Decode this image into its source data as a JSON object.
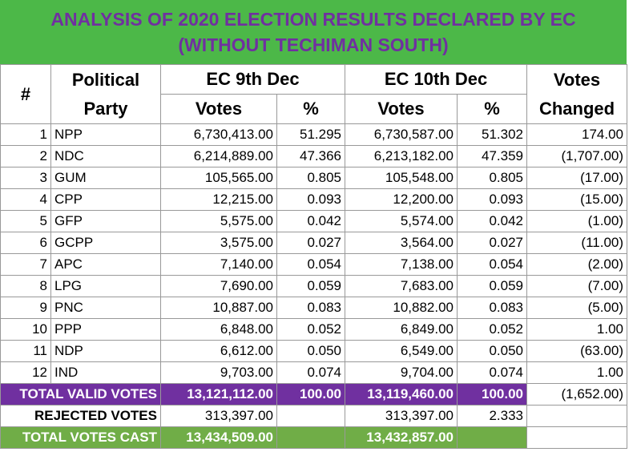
{
  "title": [
    "ANALYSIS OF 2020 ELECTION RESULTS DECLARED BY EC",
    "(WITHOUT TECHIMAN SOUTH)"
  ],
  "header": {
    "number": "#",
    "party": "Political Party",
    "ec_9": "EC 9th Dec",
    "ec_10": "EC 10th Dec",
    "changed": "Votes Changed",
    "sub": [
      "Votes",
      "%",
      "Votes",
      "%"
    ]
  },
  "rows": [
    [
      "1",
      "NPP",
      "6,730,413.00",
      "51.295",
      "6,730,587.00",
      "51.302",
      "174.00"
    ],
    [
      "2",
      "NDC",
      "6,214,889.00",
      "47.366",
      "6,213,182.00",
      "47.359",
      "(1,707.00)"
    ],
    [
      "3",
      "GUM",
      "105,565.00",
      "0.805",
      "105,548.00",
      "0.805",
      "(17.00)"
    ],
    [
      "4",
      "CPP",
      "12,215.00",
      "0.093",
      "12,200.00",
      "0.093",
      "(15.00)"
    ],
    [
      "5",
      "GFP",
      "5,575.00",
      "0.042",
      "5,574.00",
      "0.042",
      "(1.00)"
    ],
    [
      "6",
      "GCPP",
      "3,575.00",
      "0.027",
      "3,564.00",
      "0.027",
      "(11.00)"
    ],
    [
      "7",
      "APC",
      "7,140.00",
      "0.054",
      "7,138.00",
      "0.054",
      "(2.00)"
    ],
    [
      "8",
      "LPG",
      "7,690.00",
      "0.059",
      "7,683.00",
      "0.059",
      "(7.00)"
    ],
    [
      "9",
      "PNC",
      "10,887.00",
      "0.083",
      "10,882.00",
      "0.083",
      "(5.00)"
    ],
    [
      "10",
      "PPP",
      "6,848.00",
      "0.052",
      "6,849.00",
      "0.052",
      "1.00"
    ],
    [
      "11",
      "NDP",
      "6,612.00",
      "0.050",
      "6,549.00",
      "0.050",
      "(63.00)"
    ],
    [
      "12",
      "IND",
      "9,703.00",
      "0.074",
      "9,704.00",
      "0.074",
      "1.00"
    ]
  ],
  "totals": {
    "total_valid": {
      "label": "TOTAL VALID VOTES",
      "votes_9": "13,121,112.00",
      "pct_9": "100.00",
      "votes_10": "13,119,460.00",
      "pct_10": "100.00",
      "changed": "(1,652.00)"
    },
    "rejected": {
      "label": "REJECTED VOTES",
      "votes_9": "313,397.00",
      "votes_10": "313,397.00",
      "pct_10": "2.333"
    },
    "total_cast": {
      "label": "TOTAL VOTES CAST",
      "votes_9": "13,434,509.00",
      "votes_10": "13,432,857.00"
    }
  }
}
